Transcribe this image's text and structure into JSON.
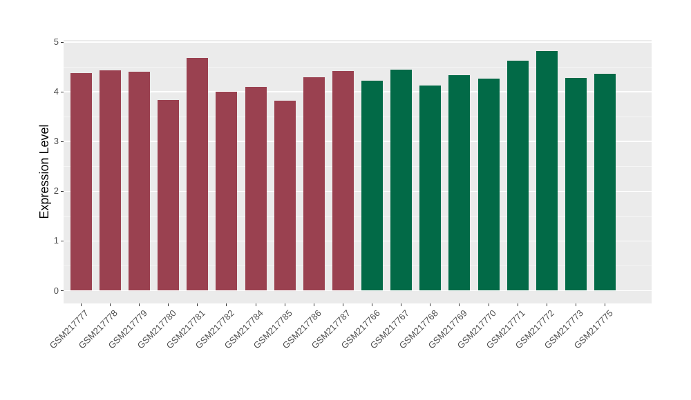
{
  "figure": {
    "background": "#FFFFFF",
    "panel_background": "#EBEBEB",
    "grid_major_color": "#FFFFFF",
    "grid_minor_color": "#F5F5F5",
    "tick_color": "#333333",
    "tick_label_color": "#4D4D4D",
    "axis_title_color": "#000000"
  },
  "chart_data": {
    "type": "bar",
    "title": "",
    "xlabel": "",
    "ylabel": "Expression Level",
    "ylim": [
      0,
      5
    ],
    "yticks": [
      0,
      1,
      2,
      3,
      4,
      5
    ],
    "grid": true,
    "legend": false,
    "x_label_rotation_deg": 45,
    "group_colors": {
      "red": "#9A4150",
      "green": "#026A47"
    },
    "bars": [
      {
        "label": "GSM217777",
        "value": 4.37,
        "group": "red"
      },
      {
        "label": "GSM217778",
        "value": 4.43,
        "group": "red"
      },
      {
        "label": "GSM217779",
        "value": 4.4,
        "group": "red"
      },
      {
        "label": "GSM217780",
        "value": 3.83,
        "group": "red"
      },
      {
        "label": "GSM217781",
        "value": 4.68,
        "group": "red"
      },
      {
        "label": "GSM217782",
        "value": 4.0,
        "group": "red"
      },
      {
        "label": "GSM217784",
        "value": 4.1,
        "group": "red"
      },
      {
        "label": "GSM217785",
        "value": 3.82,
        "group": "red"
      },
      {
        "label": "GSM217786",
        "value": 4.29,
        "group": "red"
      },
      {
        "label": "GSM217787",
        "value": 4.42,
        "group": "red"
      },
      {
        "label": "GSM217766",
        "value": 4.22,
        "group": "green"
      },
      {
        "label": "GSM217767",
        "value": 4.45,
        "group": "green"
      },
      {
        "label": "GSM217768",
        "value": 4.13,
        "group": "green"
      },
      {
        "label": "GSM217769",
        "value": 4.34,
        "group": "green"
      },
      {
        "label": "GSM217770",
        "value": 4.26,
        "group": "green"
      },
      {
        "label": "GSM217771",
        "value": 4.62,
        "group": "green"
      },
      {
        "label": "GSM217772",
        "value": 4.82,
        "group": "green"
      },
      {
        "label": "GSM217773",
        "value": 4.28,
        "group": "green"
      },
      {
        "label": "GSM217775",
        "value": 4.36,
        "group": "green"
      }
    ]
  }
}
